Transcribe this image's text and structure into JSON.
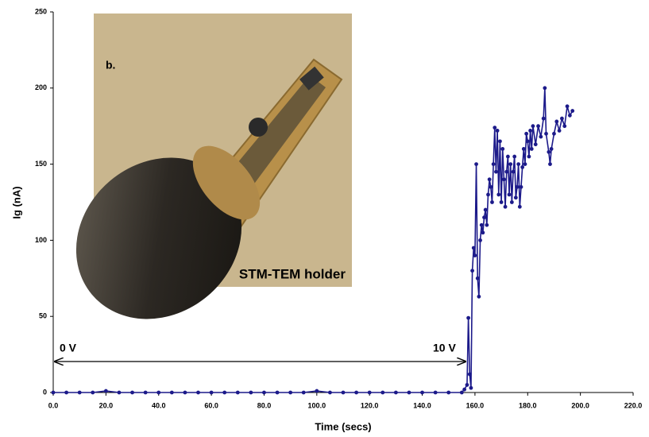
{
  "chart_data": {
    "type": "line",
    "x_label": "Time (secs)",
    "y_label": "Ig (nA)",
    "annotations": [
      "b.",
      "STM-TEM holder",
      "0 V",
      "10 V"
    ],
    "xlim": [
      0,
      220
    ],
    "xticks": [
      {
        "value": 0,
        "label": "0.0"
      },
      {
        "value": 20,
        "label": "20.0"
      },
      {
        "value": 40,
        "label": "40.0"
      },
      {
        "value": 60,
        "label": "60.0"
      },
      {
        "value": 80,
        "label": "80.0"
      },
      {
        "value": 100,
        "label": "100.0"
      },
      {
        "value": 120,
        "label": "120.0"
      },
      {
        "value": 140,
        "label": "140.0"
      },
      {
        "value": 160,
        "label": "160.0"
      },
      {
        "value": 180,
        "label": "180.0"
      },
      {
        "value": 200,
        "label": "200.0"
      },
      {
        "value": 220,
        "label": "220.0"
      }
    ],
    "ylim": [
      0,
      250
    ],
    "yticks": [
      0,
      50,
      100,
      150,
      200,
      250
    ],
    "grid": false,
    "x": [
      0,
      5,
      10,
      15,
      20,
      25,
      30,
      35,
      40,
      45,
      50,
      55,
      60,
      65,
      70,
      75,
      80,
      85,
      90,
      95,
      100,
      105,
      110,
      115,
      120,
      125,
      130,
      135,
      140,
      145,
      150,
      155,
      156,
      157,
      157.5,
      158,
      158.5,
      159,
      159.5,
      160,
      160.5,
      161,
      161.5,
      162,
      162.5,
      163,
      163.5,
      164,
      164.5,
      165,
      165.5,
      166,
      166.5,
      167,
      167.5,
      168,
      168.5,
      169,
      169.5,
      170,
      170.5,
      171,
      171.5,
      172,
      172.5,
      173,
      173.5,
      174,
      174.5,
      175,
      175.5,
      176,
      176.5,
      177,
      177.5,
      178,
      178.5,
      179,
      179.5,
      180,
      180.5,
      181,
      181.5,
      182,
      183,
      184,
      185,
      186,
      186.5,
      187,
      188,
      188.5,
      189,
      190,
      191,
      192,
      193,
      194,
      195,
      196,
      197
    ],
    "series": [
      {
        "color": "#1c1a8a",
        "values": [
          0,
          0,
          0,
          0,
          1,
          0,
          0,
          0,
          0,
          0,
          0,
          0,
          0,
          0,
          0,
          0,
          0,
          0,
          0,
          0,
          1,
          0,
          0,
          0,
          0,
          0,
          0,
          0,
          0,
          0,
          0,
          0,
          2,
          5,
          49,
          12,
          3,
          80,
          95,
          90,
          150,
          75,
          63,
          100,
          110,
          105,
          115,
          120,
          110,
          130,
          140,
          135,
          125,
          150,
          174,
          145,
          172,
          130,
          165,
          125,
          160,
          140,
          122,
          145,
          155,
          130,
          150,
          125,
          145,
          155,
          128,
          135,
          150,
          122,
          135,
          148,
          160,
          150,
          170,
          165,
          155,
          172,
          160,
          175,
          163,
          175,
          168,
          180,
          200,
          170,
          158,
          150,
          160,
          170,
          178,
          172,
          180,
          175,
          188,
          182,
          185
        ]
      }
    ]
  }
}
